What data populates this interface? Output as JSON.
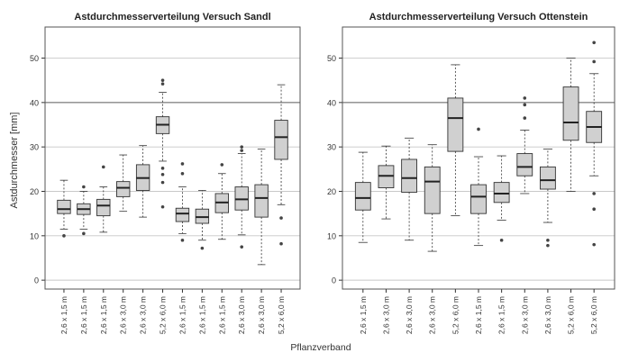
{
  "figure": {
    "ylabel": "Astdurchmesser [mm]",
    "xlabel": "Pflanzverband",
    "colors": {
      "box_fill": "#d0d0d0",
      "stroke": "#333333",
      "grid": "#c8c8c8",
      "highlight_line": "#888888"
    }
  },
  "chart_data": [
    {
      "type": "box",
      "title": "Astdurchmesserverteilung Versuch Sandl",
      "ylabel": "Astdurchmesser [mm]",
      "ylim": [
        -2,
        57
      ],
      "yticks": [
        0,
        10,
        20,
        30,
        40,
        50
      ],
      "grid": true,
      "categories": [
        "2,6 x 1,5 m",
        "2,6 x 1,5 m",
        "2,6 x 1,5 m",
        "2,6 x 3,0 m",
        "2,6 x 3,0 m",
        "5,2 x 6,0 m",
        "2,6 x 1,5 m",
        "2,6 x 1,5 m",
        "2,6 x 1,5 m",
        "2,6 x 3,0 m",
        "2,6 x 3,0 m",
        "5,2 x 6,0 m"
      ],
      "boxes": [
        {
          "whisker_low": 11.5,
          "q1": 15.0,
          "median": 16.0,
          "q3": 18.0,
          "whisker_high": 22.5,
          "outliers": [
            10.0
          ]
        },
        {
          "whisker_low": 11.5,
          "q1": 14.8,
          "median": 16.0,
          "q3": 17.2,
          "whisker_high": 20.0,
          "outliers": [
            21.0,
            10.5
          ]
        },
        {
          "whisker_low": 10.8,
          "q1": 14.5,
          "median": 16.8,
          "q3": 18.2,
          "whisker_high": 21.0,
          "outliers": [
            25.5
          ]
        },
        {
          "whisker_low": 15.5,
          "q1": 18.8,
          "median": 20.8,
          "q3": 22.2,
          "whisker_high": 28.2,
          "outliers": []
        },
        {
          "whisker_low": 14.2,
          "q1": 20.2,
          "median": 23.0,
          "q3": 26.0,
          "whisker_high": 30.3,
          "outliers": []
        },
        {
          "whisker_low": 26.8,
          "q1": 33.0,
          "median": 35.0,
          "q3": 36.8,
          "whisker_high": 42.3,
          "outliers": [
            45.0,
            44.2,
            25.2,
            23.8,
            22.0,
            16.5
          ]
        },
        {
          "whisker_low": 10.5,
          "q1": 13.2,
          "median": 15.0,
          "q3": 16.2,
          "whisker_high": 21.0,
          "outliers": [
            26.2,
            24.0,
            9.0
          ]
        },
        {
          "whisker_low": 9.0,
          "q1": 12.8,
          "median": 14.2,
          "q3": 16.0,
          "whisker_high": 20.2,
          "outliers": [
            7.2
          ]
        },
        {
          "whisker_low": 9.2,
          "q1": 15.2,
          "median": 17.5,
          "q3": 19.5,
          "whisker_high": 24.0,
          "outliers": [
            26.0
          ]
        },
        {
          "whisker_low": 10.2,
          "q1": 15.8,
          "median": 18.2,
          "q3": 21.0,
          "whisker_high": 28.5,
          "outliers": [
            30.0,
            29.2,
            7.5
          ]
        },
        {
          "whisker_low": 3.5,
          "q1": 14.2,
          "median": 18.5,
          "q3": 21.5,
          "whisker_high": 29.5,
          "outliers": []
        },
        {
          "whisker_low": 17.0,
          "q1": 27.2,
          "median": 32.2,
          "q3": 36.0,
          "whisker_high": 44.0,
          "outliers": [
            14.0,
            8.2
          ]
        }
      ]
    },
    {
      "type": "box",
      "title": "Astdurchmesserverteilung Versuch Ottenstein",
      "ylim": [
        -2,
        57
      ],
      "yticks": [
        0,
        10,
        20,
        30,
        40,
        50
      ],
      "grid": true,
      "categories": [
        "2,6 x 1,5 m",
        "2,6 x 3,0 m",
        "2,6 x 3,0 m",
        "2,6 x 3,0 m",
        "5,2 x 6,0 m",
        "2,6 x 1,5 m",
        "2,6 x 1,5 m",
        "2,6 x 3,0 m",
        "2,6 x 3,0 m",
        "5,2 x 6,0 m",
        "5,2 x 6,0 m"
      ],
      "boxes": [
        {
          "whisker_low": 8.5,
          "q1": 15.8,
          "median": 18.5,
          "q3": 22.0,
          "whisker_high": 28.8,
          "outliers": []
        },
        {
          "whisker_low": 13.8,
          "q1": 20.8,
          "median": 23.5,
          "q3": 25.8,
          "whisker_high": 30.2,
          "outliers": []
        },
        {
          "whisker_low": 9.0,
          "q1": 19.8,
          "median": 23.0,
          "q3": 27.2,
          "whisker_high": 32.0,
          "outliers": []
        },
        {
          "whisker_low": 6.5,
          "q1": 15.0,
          "median": 22.2,
          "q3": 25.5,
          "whisker_high": 30.5,
          "outliers": []
        },
        {
          "whisker_low": 14.5,
          "q1": 29.0,
          "median": 36.5,
          "q3": 41.0,
          "whisker_high": 48.5,
          "outliers": []
        },
        {
          "whisker_low": 7.8,
          "q1": 15.0,
          "median": 18.8,
          "q3": 21.5,
          "whisker_high": 27.8,
          "outliers": [
            34.0
          ]
        },
        {
          "whisker_low": 13.5,
          "q1": 17.5,
          "median": 19.5,
          "q3": 22.0,
          "whisker_high": 28.0,
          "outliers": [
            9.0
          ]
        },
        {
          "whisker_low": 19.5,
          "q1": 23.5,
          "median": 25.5,
          "q3": 28.5,
          "whisker_high": 33.8,
          "outliers": [
            41.0,
            39.5,
            36.5
          ]
        },
        {
          "whisker_low": 13.0,
          "q1": 20.5,
          "median": 22.5,
          "q3": 25.5,
          "whisker_high": 29.5,
          "outliers": [
            9.0,
            7.8
          ]
        },
        {
          "whisker_low": 20.0,
          "q1": 31.5,
          "median": 35.5,
          "q3": 43.5,
          "whisker_high": 50.0,
          "outliers": []
        },
        {
          "whisker_low": 23.5,
          "q1": 31.0,
          "median": 34.5,
          "q3": 38.0,
          "whisker_high": 46.5,
          "outliers": [
            53.5,
            49.2,
            19.5,
            16.0,
            8.0
          ]
        }
      ]
    }
  ]
}
